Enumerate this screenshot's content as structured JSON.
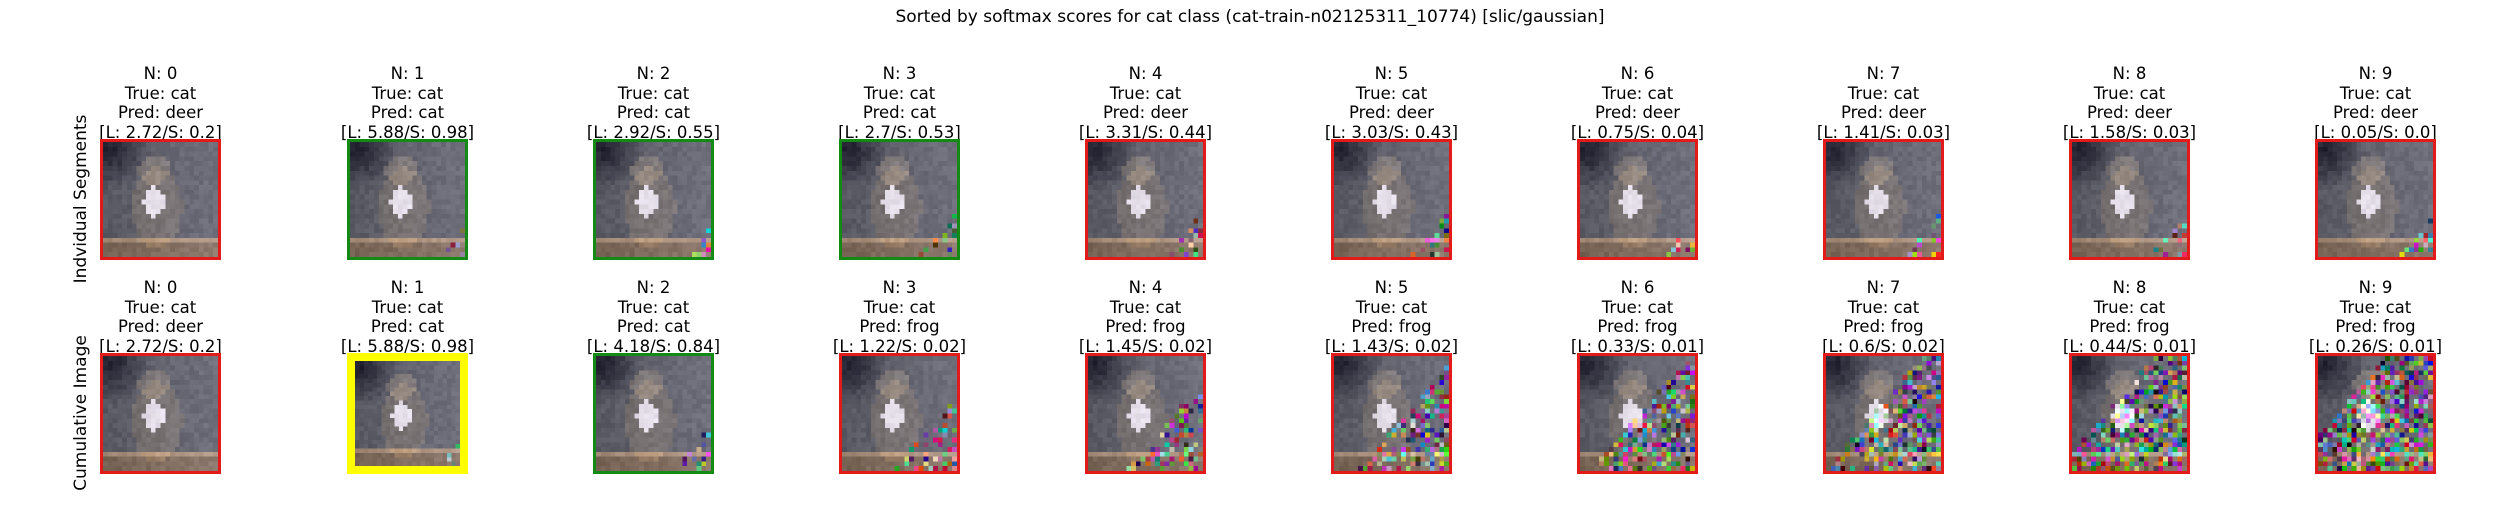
{
  "figure": {
    "title": "Sorted by softmax scores for cat class (cat-train-n02125311_10774) [slic/gaussian]"
  },
  "colors": {
    "correct_border": "#138a13",
    "wrong_border": "#e31a1a",
    "best_border": "#ffff00"
  },
  "rows": [
    {
      "label": "Indvidual Segments",
      "panels": [
        {
          "n": "N: 0",
          "true_label": "True: cat",
          "pred": "Pred: deer",
          "scores": "[L: 2.72/S: 0.2]",
          "border": "wrong_border",
          "noise_level": 0.0
        },
        {
          "n": "N: 1",
          "true_label": "True: cat",
          "pred": "Pred: cat",
          "scores": "[L: 5.88/S: 0.98]",
          "border": "correct_border",
          "noise_level": 0.05
        },
        {
          "n": "N: 2",
          "true_label": "True: cat",
          "pred": "Pred: cat",
          "scores": "[L: 2.92/S: 0.55]",
          "border": "correct_border",
          "noise_level": 0.05
        },
        {
          "n": "N: 3",
          "true_label": "True: cat",
          "pred": "Pred: cat",
          "scores": "[L: 2.7/S: 0.53]",
          "border": "correct_border",
          "noise_level": 0.1
        },
        {
          "n": "N: 4",
          "true_label": "True: cat",
          "pred": "Pred: deer",
          "scores": "[L: 3.31/S: 0.44]",
          "border": "wrong_border",
          "noise_level": 0.1
        },
        {
          "n": "N: 5",
          "true_label": "True: cat",
          "pred": "Pred: deer",
          "scores": "[L: 3.03/S: 0.43]",
          "border": "wrong_border",
          "noise_level": 0.1
        },
        {
          "n": "N: 6",
          "true_label": "True: cat",
          "pred": "Pred: deer",
          "scores": "[L: 0.75/S: 0.04]",
          "border": "wrong_border",
          "noise_level": 0.1
        },
        {
          "n": "N: 7",
          "true_label": "True: cat",
          "pred": "Pred: deer",
          "scores": "[L: 1.41/S: 0.03]",
          "border": "wrong_border",
          "noise_level": 0.1
        },
        {
          "n": "N: 8",
          "true_label": "True: cat",
          "pred": "Pred: deer",
          "scores": "[L: 1.58/S: 0.03]",
          "border": "wrong_border",
          "noise_level": 0.1
        },
        {
          "n": "N: 9",
          "true_label": "True: cat",
          "pred": "Pred: deer",
          "scores": "[L: 0.05/S: 0.0]",
          "border": "wrong_border",
          "noise_level": 0.1
        }
      ]
    },
    {
      "label": "Cumulative Image",
      "panels": [
        {
          "n": "N: 0",
          "true_label": "True: cat",
          "pred": "Pred: deer",
          "scores": "[L: 2.72/S: 0.2]",
          "border": "wrong_border",
          "noise_level": 0.0
        },
        {
          "n": "N: 1",
          "true_label": "True: cat",
          "pred": "Pred: cat",
          "scores": "[L: 5.88/S: 0.98]",
          "border": "best_border",
          "noise_level": 0.05
        },
        {
          "n": "N: 2",
          "true_label": "True: cat",
          "pred": "Pred: cat",
          "scores": "[L: 4.18/S: 0.84]",
          "border": "correct_border",
          "noise_level": 0.1
        },
        {
          "n": "N: 3",
          "true_label": "True: cat",
          "pred": "Pred: frog",
          "scores": "[L: 1.22/S: 0.02]",
          "border": "wrong_border",
          "noise_level": 0.2
        },
        {
          "n": "N: 4",
          "true_label": "True: cat",
          "pred": "Pred: frog",
          "scores": "[L: 1.45/S: 0.02]",
          "border": "wrong_border",
          "noise_level": 0.25
        },
        {
          "n": "N: 5",
          "true_label": "True: cat",
          "pred": "Pred: frog",
          "scores": "[L: 1.43/S: 0.02]",
          "border": "wrong_border",
          "noise_level": 0.3
        },
        {
          "n": "N: 6",
          "true_label": "True: cat",
          "pred": "Pred: frog",
          "scores": "[L: 0.33/S: 0.01]",
          "border": "wrong_border",
          "noise_level": 0.35
        },
        {
          "n": "N: 7",
          "true_label": "True: cat",
          "pred": "Pred: frog",
          "scores": "[L: 0.6/S: 0.02]",
          "border": "wrong_border",
          "noise_level": 0.4
        },
        {
          "n": "N: 8",
          "true_label": "True: cat",
          "pred": "Pred: frog",
          "scores": "[L: 0.44/S: 0.01]",
          "border": "wrong_border",
          "noise_level": 0.45
        },
        {
          "n": "N: 9",
          "true_label": "True: cat",
          "pred": "Pred: frog",
          "scores": "[L: 0.26/S: 0.01]",
          "border": "wrong_border",
          "noise_level": 0.5
        }
      ]
    }
  ]
}
